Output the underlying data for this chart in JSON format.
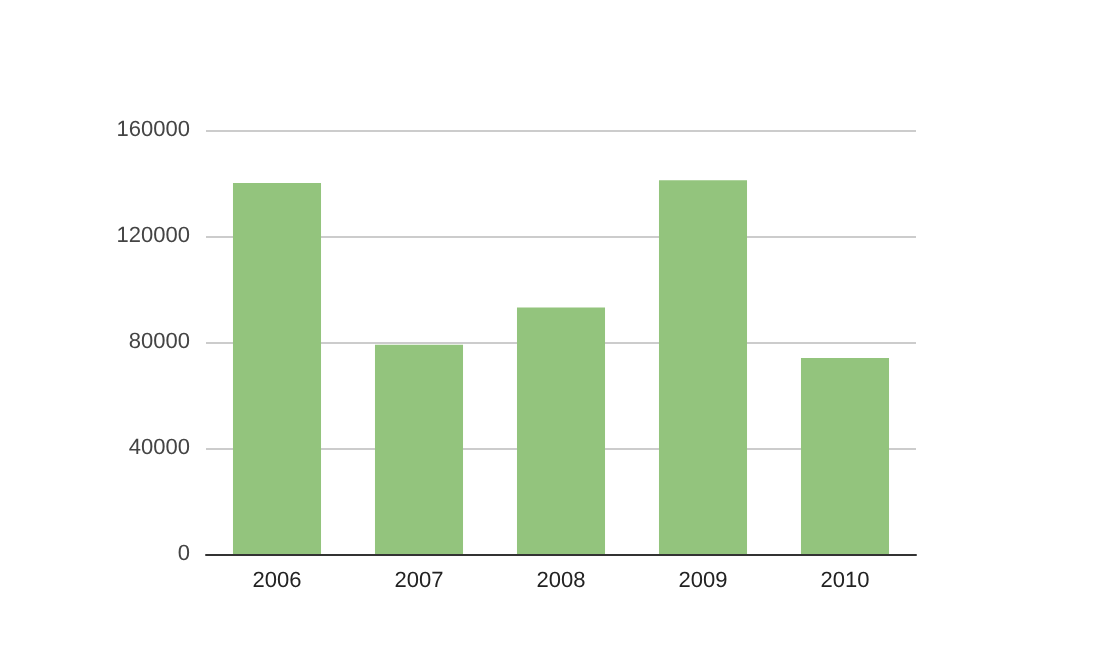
{
  "chart_data": {
    "type": "bar",
    "categories": [
      "2006",
      "2007",
      "2008",
      "2009",
      "2010"
    ],
    "values": [
      140000,
      79000,
      93000,
      141000,
      74000
    ],
    "color": "#93c47d",
    "ylim": [
      0,
      160000
    ],
    "yticks": [
      0,
      40000,
      80000,
      120000,
      160000
    ],
    "grid": "y"
  }
}
